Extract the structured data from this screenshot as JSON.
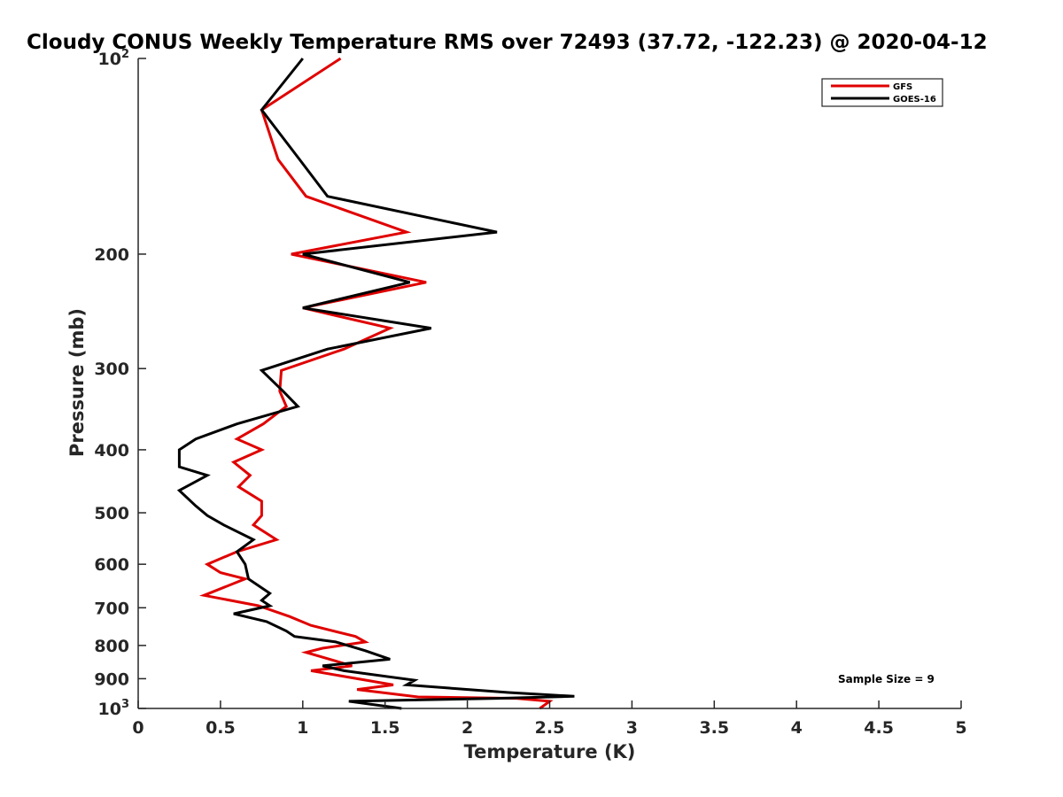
{
  "chart_data": {
    "type": "line",
    "title": "Cloudy CONUS Weekly Temperature RMS over 72493 (37.72, -122.23) @ 2020-04-12",
    "xlabel": "Temperature (K)",
    "ylabel": "Pressure (mb)",
    "xlim": [
      0,
      5
    ],
    "ylim": [
      1000,
      100
    ],
    "yscale": "log",
    "y_reversed": true,
    "grid": false,
    "legend_position": "top-right",
    "x_ticks": [
      {
        "value": 0,
        "label": "0"
      },
      {
        "value": 0.5,
        "label": "0.5"
      },
      {
        "value": 1,
        "label": "1"
      },
      {
        "value": 1.5,
        "label": "1.5"
      },
      {
        "value": 2,
        "label": "2"
      },
      {
        "value": 2.5,
        "label": "2.5"
      },
      {
        "value": 3,
        "label": "3"
      },
      {
        "value": 3.5,
        "label": "3.5"
      },
      {
        "value": 4,
        "label": "4"
      },
      {
        "value": 4.5,
        "label": "4.5"
      },
      {
        "value": 5,
        "label": "5"
      }
    ],
    "y_ticks": [
      {
        "value": 100,
        "base": "10",
        "exp": "2"
      },
      {
        "value": 200,
        "label": "200"
      },
      {
        "value": 300,
        "label": "300"
      },
      {
        "value": 400,
        "label": "400"
      },
      {
        "value": 500,
        "label": "500"
      },
      {
        "value": 600,
        "label": "600"
      },
      {
        "value": 700,
        "label": "700"
      },
      {
        "value": 800,
        "label": "800"
      },
      {
        "value": 900,
        "label": "900"
      },
      {
        "value": 1000,
        "base": "10",
        "exp": "3"
      }
    ],
    "annotation": "Sample Size = 9",
    "series": [
      {
        "name": "GFS",
        "color": "#e00000",
        "points": [
          {
            "x": 1.23,
            "y": 100
          },
          {
            "x": 0.75,
            "y": 120
          },
          {
            "x": 0.85,
            "y": 143
          },
          {
            "x": 1.02,
            "y": 163
          },
          {
            "x": 1.63,
            "y": 185
          },
          {
            "x": 0.93,
            "y": 200
          },
          {
            "x": 1.75,
            "y": 221
          },
          {
            "x": 1.0,
            "y": 242
          },
          {
            "x": 1.53,
            "y": 260
          },
          {
            "x": 1.25,
            "y": 280
          },
          {
            "x": 0.87,
            "y": 302
          },
          {
            "x": 0.86,
            "y": 325
          },
          {
            "x": 0.9,
            "y": 343
          },
          {
            "x": 0.76,
            "y": 365
          },
          {
            "x": 0.6,
            "y": 385
          },
          {
            "x": 0.75,
            "y": 400
          },
          {
            "x": 0.58,
            "y": 418
          },
          {
            "x": 0.68,
            "y": 438
          },
          {
            "x": 0.61,
            "y": 456
          },
          {
            "x": 0.75,
            "y": 480
          },
          {
            "x": 0.75,
            "y": 505
          },
          {
            "x": 0.7,
            "y": 522
          },
          {
            "x": 0.84,
            "y": 550
          },
          {
            "x": 0.6,
            "y": 574
          },
          {
            "x": 0.42,
            "y": 600
          },
          {
            "x": 0.5,
            "y": 618
          },
          {
            "x": 0.65,
            "y": 632
          },
          {
            "x": 0.4,
            "y": 670
          },
          {
            "x": 0.73,
            "y": 695
          },
          {
            "x": 0.92,
            "y": 722
          },
          {
            "x": 1.05,
            "y": 745
          },
          {
            "x": 1.32,
            "y": 775
          },
          {
            "x": 1.38,
            "y": 790
          },
          {
            "x": 1.12,
            "y": 808
          },
          {
            "x": 1.02,
            "y": 820
          },
          {
            "x": 1.3,
            "y": 860
          },
          {
            "x": 1.05,
            "y": 875
          },
          {
            "x": 1.55,
            "y": 920
          },
          {
            "x": 1.33,
            "y": 935
          },
          {
            "x": 1.7,
            "y": 960
          },
          {
            "x": 2.3,
            "y": 965
          },
          {
            "x": 2.5,
            "y": 975
          },
          {
            "x": 2.44,
            "y": 1000
          }
        ]
      },
      {
        "name": "GOES-16",
        "color": "#000000",
        "points": [
          {
            "x": 1.0,
            "y": 100
          },
          {
            "x": 0.75,
            "y": 120
          },
          {
            "x": 0.98,
            "y": 143
          },
          {
            "x": 1.15,
            "y": 163
          },
          {
            "x": 2.18,
            "y": 185
          },
          {
            "x": 1.0,
            "y": 200
          },
          {
            "x": 1.65,
            "y": 221
          },
          {
            "x": 1.0,
            "y": 242
          },
          {
            "x": 1.78,
            "y": 260
          },
          {
            "x": 1.15,
            "y": 280
          },
          {
            "x": 0.75,
            "y": 302
          },
          {
            "x": 0.88,
            "y": 325
          },
          {
            "x": 0.97,
            "y": 343
          },
          {
            "x": 0.6,
            "y": 365
          },
          {
            "x": 0.35,
            "y": 385
          },
          {
            "x": 0.25,
            "y": 400
          },
          {
            "x": 0.25,
            "y": 425
          },
          {
            "x": 0.42,
            "y": 438
          },
          {
            "x": 0.25,
            "y": 462
          },
          {
            "x": 0.35,
            "y": 488
          },
          {
            "x": 0.42,
            "y": 505
          },
          {
            "x": 0.52,
            "y": 522
          },
          {
            "x": 0.7,
            "y": 550
          },
          {
            "x": 0.6,
            "y": 574
          },
          {
            "x": 0.65,
            "y": 600
          },
          {
            "x": 0.67,
            "y": 632
          },
          {
            "x": 0.8,
            "y": 665
          },
          {
            "x": 0.75,
            "y": 682
          },
          {
            "x": 0.8,
            "y": 695
          },
          {
            "x": 0.58,
            "y": 715
          },
          {
            "x": 0.78,
            "y": 735
          },
          {
            "x": 0.9,
            "y": 760
          },
          {
            "x": 0.95,
            "y": 775
          },
          {
            "x": 1.2,
            "y": 790
          },
          {
            "x": 1.38,
            "y": 815
          },
          {
            "x": 1.53,
            "y": 840
          },
          {
            "x": 1.12,
            "y": 860
          },
          {
            "x": 1.25,
            "y": 875
          },
          {
            "x": 1.68,
            "y": 905
          },
          {
            "x": 1.63,
            "y": 920
          },
          {
            "x": 2.25,
            "y": 945
          },
          {
            "x": 2.65,
            "y": 958
          },
          {
            "x": 2.18,
            "y": 965
          },
          {
            "x": 1.28,
            "y": 975
          },
          {
            "x": 1.6,
            "y": 1000
          }
        ]
      }
    ]
  }
}
